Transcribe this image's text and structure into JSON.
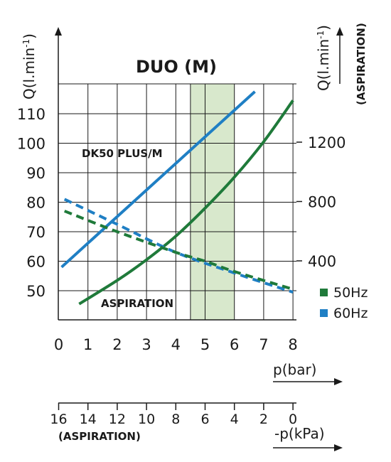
{
  "chart_data": {
    "type": "line",
    "title": "DUO (M)",
    "annotations": [
      "DK50 PLUS/M",
      "ASPIRATION"
    ],
    "x_axis": {
      "label": "p(bar)",
      "ticks": [
        "0",
        "1",
        "2",
        "3",
        "4",
        "5",
        "6",
        "7",
        "8"
      ],
      "range": [
        0,
        8
      ]
    },
    "x2_axis": {
      "label": "-p(kPa)",
      "sublabel": "(ASPIRATION)",
      "ticks": [
        "16",
        "14",
        "12",
        "10",
        "8",
        "6",
        "4",
        "2",
        "0"
      ]
    },
    "y_axis": {
      "label_main": "Q(l.min",
      "label_sup": "-1",
      "label_close": ")",
      "ticks": [
        "50",
        "60",
        "70",
        "80",
        "90",
        "100",
        "110"
      ],
      "range": [
        45,
        120
      ]
    },
    "y2_axis": {
      "label_main": "Q(l.min",
      "label_sup": "-1",
      "label_close": ")",
      "sublabel": "(ASPIRATION)",
      "ticks": [
        "400",
        "800",
        "1200"
      ],
      "tick_values": [
        400,
        800,
        1200
      ]
    },
    "shaded_band": {
      "x_range": [
        4.5,
        6
      ],
      "color": "#d8e8cc"
    },
    "grid": true,
    "legend": {
      "position": "bottom-right",
      "items": [
        {
          "label": "50Hz",
          "color": "#1f7a3a"
        },
        {
          "label": "60Hz",
          "color": "#1f7fc4"
        }
      ]
    },
    "series": [
      {
        "color": "#1f7fc4",
        "style": "solid",
        "x": [
          0.1,
          6.7
        ],
        "y": [
          58,
          117.5
        ]
      },
      {
        "color": "#1f7a3a",
        "style": "solid",
        "x": [
          0.7,
          2,
          3,
          4,
          5,
          6,
          7,
          8
        ],
        "y": [
          45.5,
          53.5,
          60.5,
          68.5,
          78,
          88.5,
          100.5,
          114.5
        ]
      },
      {
        "color": "#1f7fc4",
        "style": "dashed",
        "x": [
          0.2,
          2,
          4,
          6,
          8
        ],
        "y": [
          81,
          72.5,
          63,
          56,
          49.5
        ]
      },
      {
        "color": "#1f7a3a",
        "style": "dashed",
        "x": [
          0.2,
          2,
          4,
          5,
          6,
          8
        ],
        "y": [
          77,
          70,
          63,
          60,
          56.5,
          50.5
        ]
      }
    ]
  }
}
